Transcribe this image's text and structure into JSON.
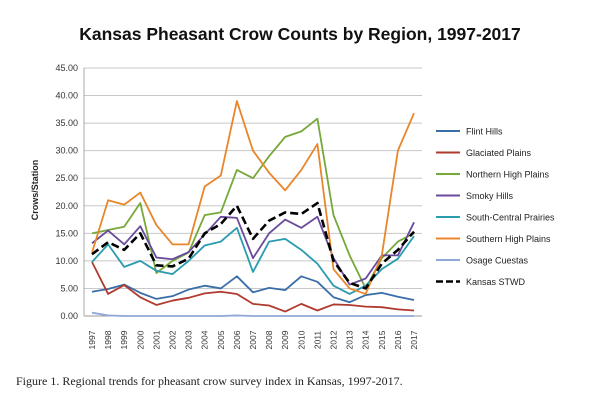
{
  "chart_data": {
    "type": "line",
    "title": "Kansas Pheasant Crow Counts by Region, 1997-2017",
    "ylabel": "Crows/Station",
    "xlabel": "",
    "ylim": [
      0,
      45
    ],
    "yticks": [
      "0.00",
      "5.00",
      "10.00",
      "15.00",
      "20.00",
      "25.00",
      "30.00",
      "35.00",
      "40.00",
      "45.00"
    ],
    "grid": true,
    "legend": "right",
    "x": [
      "1997",
      "1998",
      "1999",
      "2000",
      "2001",
      "2002",
      "2003",
      "2004",
      "2005",
      "2006",
      "2007",
      "2008",
      "2009",
      "2010",
      "2011",
      "2012",
      "2013",
      "2014",
      "2015",
      "2016",
      "2017"
    ],
    "series": [
      {
        "name": "Flint Hills",
        "color": "#3a6ea8",
        "dash": false,
        "values": [
          4.4,
          4.9,
          5.7,
          4.2,
          3.1,
          3.6,
          4.8,
          5.5,
          5.0,
          7.2,
          4.3,
          5.1,
          4.7,
          7.2,
          6.2,
          3.4,
          2.5,
          3.8,
          4.2,
          3.5,
          2.9
        ]
      },
      {
        "name": "Glaciated Plains",
        "color": "#b03a2e",
        "dash": false,
        "values": [
          9.8,
          4.0,
          5.6,
          3.4,
          2.0,
          2.8,
          3.3,
          4.1,
          4.4,
          4.0,
          2.2,
          1.9,
          0.8,
          2.2,
          1.0,
          2.1,
          2.0,
          1.7,
          1.6,
          1.2,
          1.0
        ]
      },
      {
        "name": "Northern High Plains",
        "color": "#77a83a",
        "dash": false,
        "values": [
          15.0,
          15.6,
          16.2,
          20.5,
          7.8,
          10.0,
          11.5,
          18.3,
          18.8,
          26.5,
          25.0,
          29.0,
          32.5,
          33.5,
          35.8,
          18.3,
          11.0,
          5.0,
          10.5,
          13.5,
          15.0
        ]
      },
      {
        "name": "Smoky Hills",
        "color": "#6a4a9c",
        "dash": false,
        "values": [
          13.2,
          15.5,
          13.0,
          16.3,
          10.6,
          10.3,
          11.6,
          14.8,
          18.0,
          17.8,
          10.5,
          15.0,
          17.5,
          16.0,
          18.0,
          10.5,
          5.7,
          6.8,
          11.0,
          11.0,
          17.0
        ]
      },
      {
        "name": "South-Central Prairies",
        "color": "#2a9bb0",
        "dash": false,
        "values": [
          9.8,
          13.0,
          8.9,
          10.0,
          8.2,
          7.6,
          10.0,
          12.8,
          13.5,
          16.0,
          8.0,
          13.5,
          14.0,
          12.0,
          9.5,
          5.5,
          4.0,
          5.5,
          8.5,
          10.4,
          14.5
        ]
      },
      {
        "name": "Southern High Plains",
        "color": "#e8862a",
        "dash": false,
        "values": [
          11.5,
          21.0,
          20.2,
          22.4,
          16.5,
          13.0,
          13.0,
          23.5,
          25.5,
          39.0,
          30.0,
          26.0,
          22.8,
          26.5,
          31.2,
          8.5,
          5.0,
          4.0,
          11.0,
          30.0,
          36.8
        ]
      },
      {
        "name": "Osage Cuestas",
        "color": "#8fa8d8",
        "dash": false,
        "values": [
          0.6,
          0.1,
          0,
          0,
          0,
          0,
          0,
          0,
          0,
          0.1,
          0,
          0,
          0,
          0,
          0,
          0,
          0,
          0,
          0,
          0,
          0
        ]
      },
      {
        "name": "Kansas STWD",
        "color": "#000000",
        "dash": true,
        "values": [
          11.2,
          13.4,
          12.0,
          15.0,
          9.2,
          9.0,
          10.4,
          15.0,
          16.7,
          20.0,
          14.0,
          17.3,
          18.8,
          18.5,
          20.5,
          10.0,
          6.0,
          5.0,
          9.5,
          12.0,
          15.3
        ]
      }
    ]
  },
  "caption": "Figure 1. Regional trends for pheasant crow survey index in Kansas, 1997-2017."
}
